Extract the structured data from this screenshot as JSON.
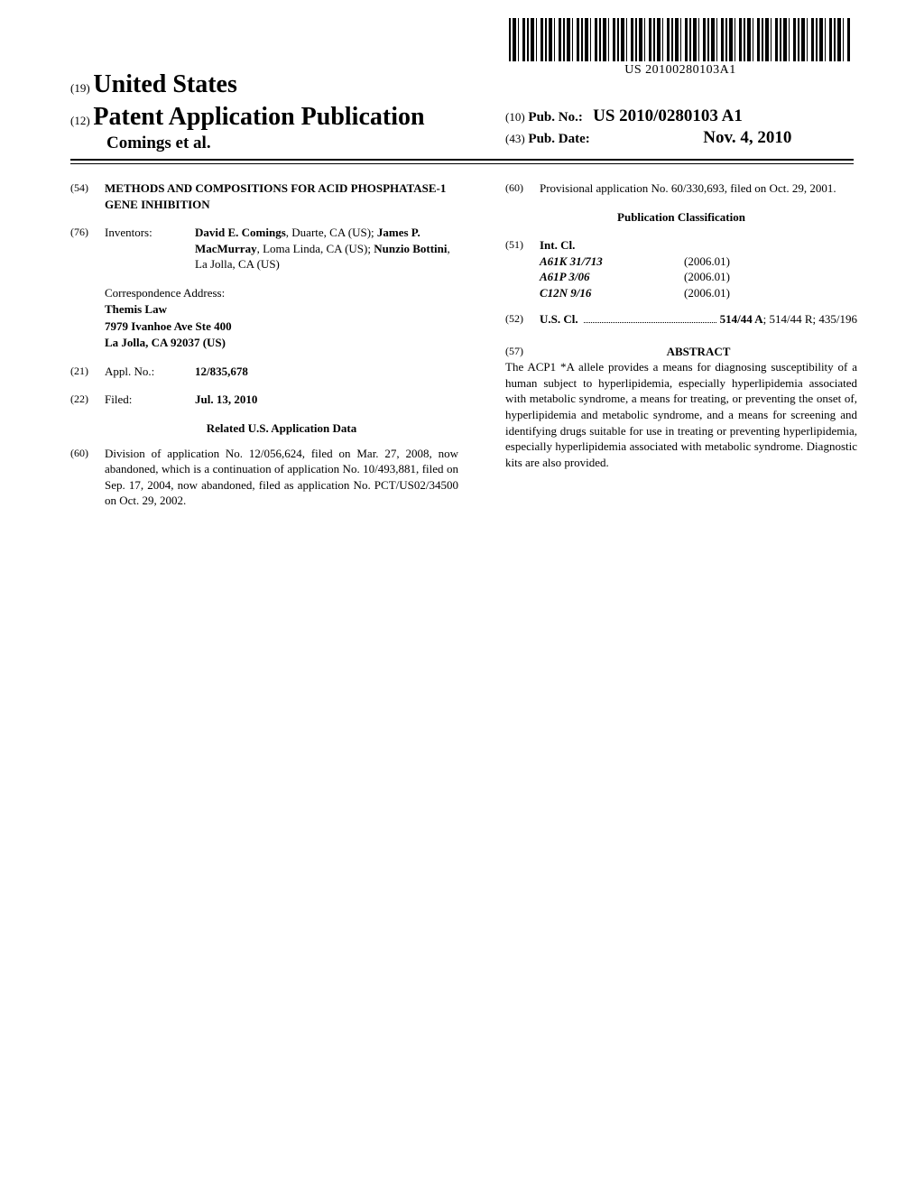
{
  "barcode_text": "US 20100280103A1",
  "header": {
    "country_code": "(19)",
    "country_name": "United States",
    "pub_code": "(12)",
    "pub_title": "Patent Application Publication",
    "authors_line": "Comings et al.",
    "pubno_code": "(10)",
    "pubno_label": "Pub. No.:",
    "pubno_value": "US 2010/0280103 A1",
    "pubdate_code": "(43)",
    "pubdate_label": "Pub. Date:",
    "pubdate_value": "Nov. 4, 2010"
  },
  "title": {
    "code": "(54)",
    "text": "METHODS AND COMPOSITIONS FOR ACID PHOSPHATASE-1 GENE INHIBITION"
  },
  "inventors": {
    "code": "(76)",
    "label": "Inventors:",
    "text_parts": [
      {
        "bold": true,
        "text": "David E. Comings"
      },
      {
        "bold": false,
        "text": ", Duarte, CA (US); "
      },
      {
        "bold": true,
        "text": "James P. MacMurray"
      },
      {
        "bold": false,
        "text": ", Loma Linda, CA (US); "
      },
      {
        "bold": true,
        "text": "Nunzio Bottini"
      },
      {
        "bold": false,
        "text": ", La Jolla, CA (US)"
      }
    ]
  },
  "correspondence": {
    "label": "Correspondence Address:",
    "lines": [
      "Themis Law",
      "7979 Ivanhoe Ave Ste 400",
      "La Jolla, CA 92037 (US)"
    ]
  },
  "appl_no": {
    "code": "(21)",
    "label": "Appl. No.:",
    "value": "12/835,678"
  },
  "filed": {
    "code": "(22)",
    "label": "Filed:",
    "value": "Jul. 13, 2010"
  },
  "related_heading": "Related U.S. Application Data",
  "related": {
    "code": "(60)",
    "text": "Division of application No. 12/056,624, filed on Mar. 27, 2008, now abandoned, which is a continuation of application No. 10/493,881, filed on Sep. 17, 2004, now abandoned, filed as application No. PCT/US02/34500 on Oct. 29, 2002."
  },
  "provisional": {
    "code": "(60)",
    "text": "Provisional application No. 60/330,693, filed on Oct. 29, 2001."
  },
  "classification_heading": "Publication Classification",
  "intcl": {
    "code": "(51)",
    "label": "Int. Cl.",
    "rows": [
      {
        "class": "A61K 31/713",
        "date": "(2006.01)"
      },
      {
        "class": "A61P 3/06",
        "date": "(2006.01)"
      },
      {
        "class": "C12N 9/16",
        "date": "(2006.01)"
      }
    ]
  },
  "uscl": {
    "code": "(52)",
    "label": "U.S. Cl.",
    "primary": "514/44 A",
    "rest": "; 514/44 R; 435/196"
  },
  "abstract": {
    "code": "(57)",
    "heading": "ABSTRACT",
    "text": "The ACP1 *A allele provides a means for diagnosing susceptibility of a human subject to hyperlipidemia, especially hyperlipidemia associated with metabolic syndrome, a means for treating, or preventing the onset of, hyperlipidemia and metabolic syndrome, and a means for screening and identifying drugs suitable for use in treating or preventing hyperlipidemia, especially hyperlipidemia associated with metabolic syndrome. Diagnostic kits are also provided."
  }
}
